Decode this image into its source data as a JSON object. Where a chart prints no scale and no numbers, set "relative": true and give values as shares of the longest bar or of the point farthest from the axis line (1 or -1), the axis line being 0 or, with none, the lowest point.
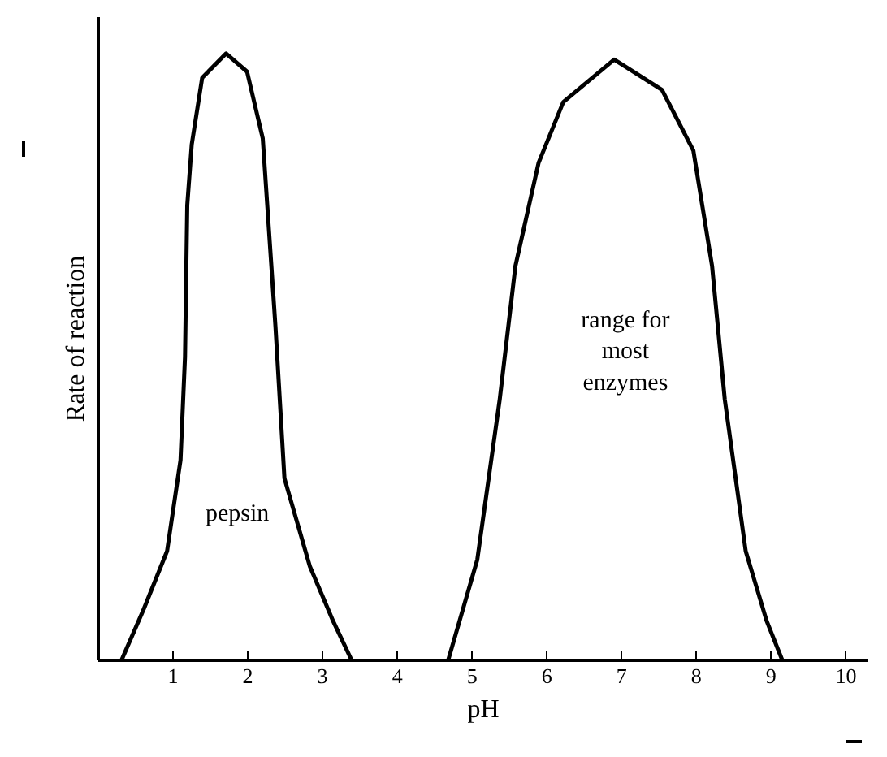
{
  "chart_data": {
    "type": "line",
    "relative": true,
    "xlabel": "pH",
    "ylabel": "Rate of reaction",
    "xlim": [
      0,
      10.3
    ],
    "xticks": [
      1,
      2,
      3,
      4,
      5,
      6,
      7,
      8,
      9,
      10
    ],
    "grid": false,
    "line_style": "solid",
    "marker": "none",
    "series": [
      {
        "name": "pepsin",
        "color": "#000000",
        "x": [
          0.31,
          0.61,
          0.92,
          1.1,
          1.16,
          1.19,
          1.25,
          1.39,
          1.71,
          1.99,
          2.2,
          2.37,
          2.49,
          2.83,
          3.14,
          3.39
        ],
        "values": [
          0,
          0.085,
          0.18,
          0.33,
          0.5,
          0.75,
          0.85,
          0.96,
          1.0,
          0.97,
          0.86,
          0.55,
          0.3,
          0.155,
          0.065,
          0
        ]
      },
      {
        "name": "range for most enzymes",
        "color": "#000000",
        "x": [
          4.68,
          5.07,
          5.37,
          5.58,
          5.89,
          6.22,
          6.9,
          7.54,
          7.96,
          8.21,
          8.38,
          8.66,
          8.94,
          9.15
        ],
        "values": [
          0,
          0.166,
          0.43,
          0.65,
          0.82,
          0.92,
          0.99,
          0.94,
          0.84,
          0.65,
          0.43,
          0.18,
          0.065,
          0
        ]
      }
    ]
  }
}
